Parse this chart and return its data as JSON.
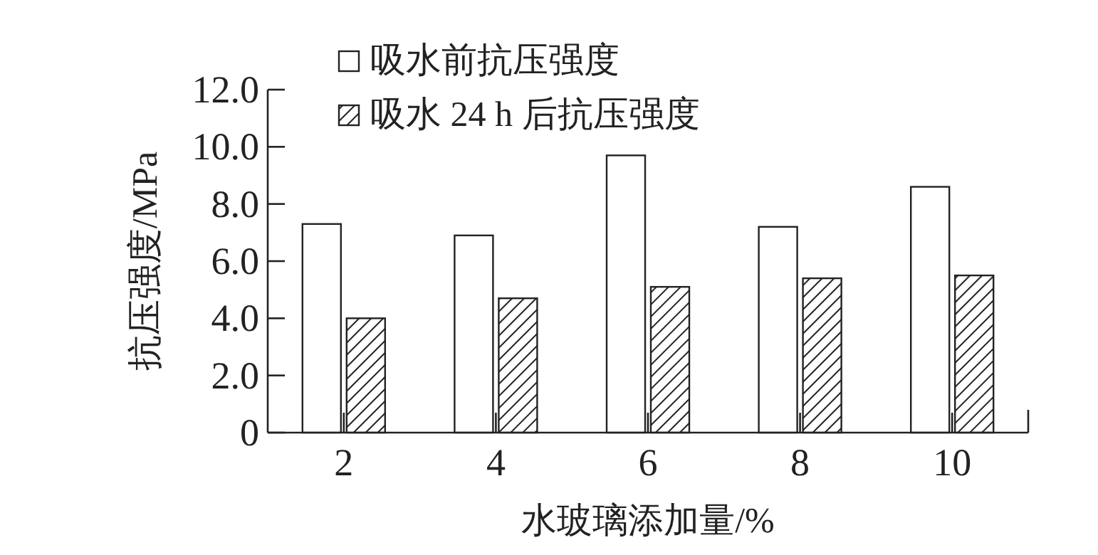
{
  "chart_data": {
    "type": "bar",
    "xlabel": "水玻璃添加量/%",
    "ylabel": "抗压强度/MPa",
    "categories": [
      "2",
      "4",
      "6",
      "8",
      "10"
    ],
    "series": [
      {
        "name": "吸水前抗压强度",
        "color": "#ffffff",
        "values": [
          7.3,
          6.9,
          9.7,
          7.2,
          8.6
        ]
      },
      {
        "name": "吸水 24 h 后抗压强度",
        "color": "#222222",
        "values": [
          4.0,
          4.7,
          5.1,
          5.4,
          5.5
        ]
      }
    ],
    "ylim": [
      0,
      12
    ],
    "yticks": [
      0,
      {
        "value": 2,
        "label": "2.0"
      },
      {
        "value": 4,
        "label": "4.0"
      },
      {
        "value": 6,
        "label": "6.0"
      },
      {
        "value": 8,
        "label": "8.0"
      },
      {
        "value": 10,
        "label": "10.0"
      },
      {
        "value": 12,
        "label": "12.0"
      }
    ],
    "legend": "top left",
    "grid": false
  }
}
